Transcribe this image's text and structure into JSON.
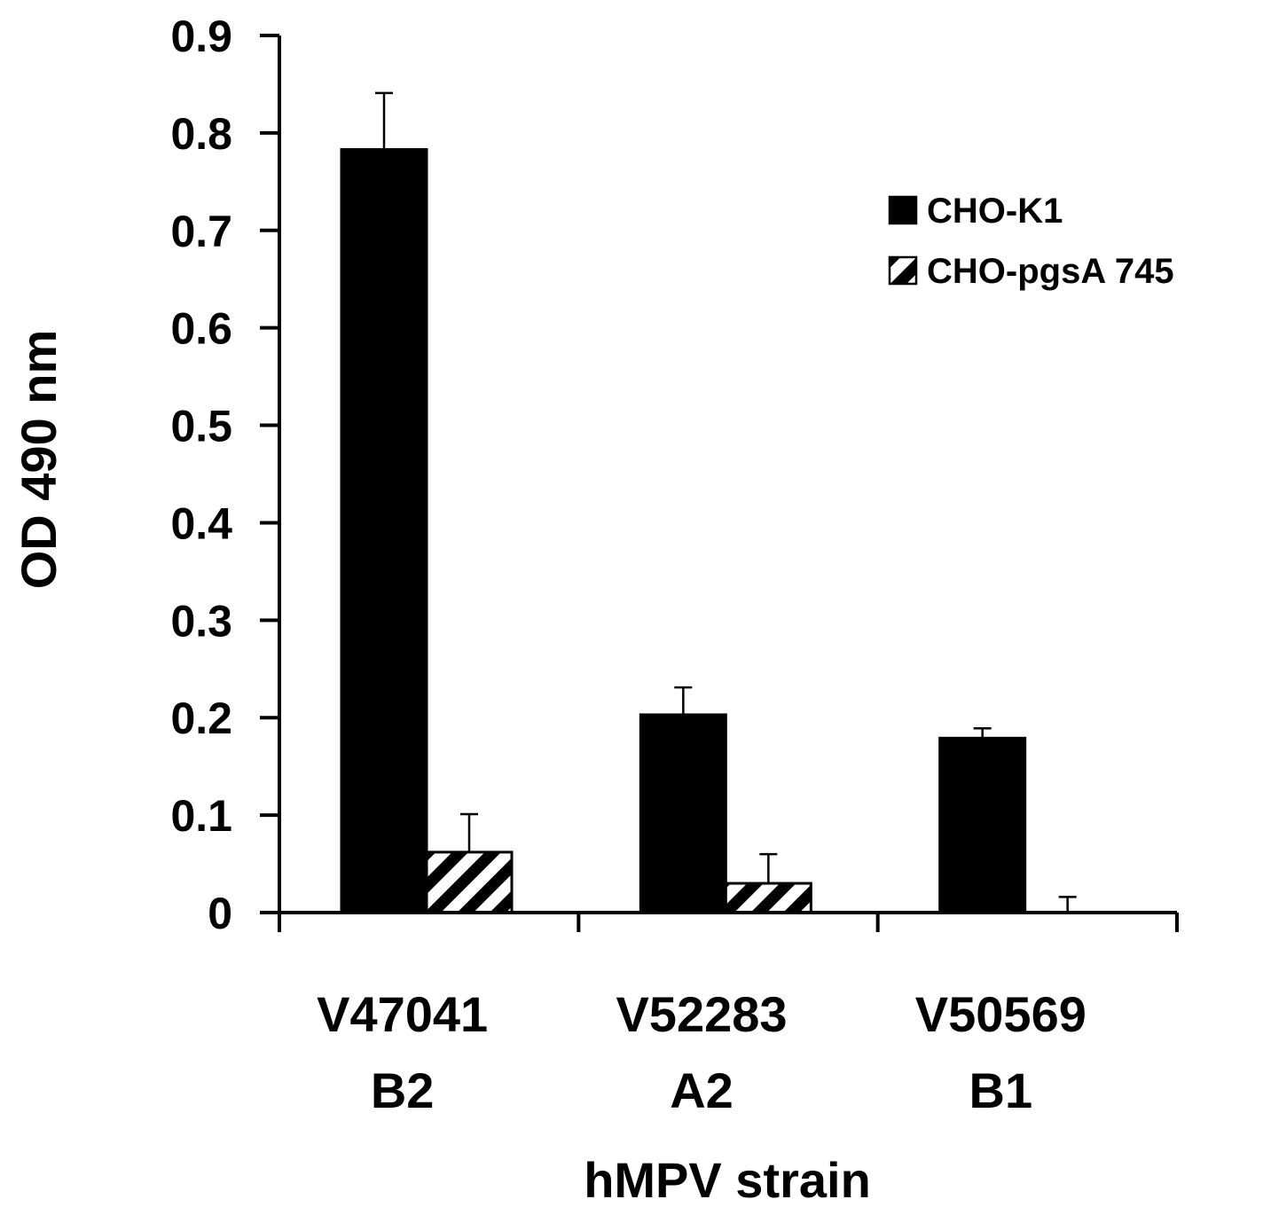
{
  "chart_data": {
    "type": "bar",
    "categories": [
      [
        "V47041",
        "B2"
      ],
      [
        "V52283",
        "A2"
      ],
      [
        "V50569",
        "B1"
      ]
    ],
    "series": [
      {
        "name": "CHO-K1",
        "values": [
          0.783,
          0.203,
          0.179
        ],
        "errors": [
          0.058,
          0.028,
          0.01
        ],
        "fill": "solid",
        "color": "#000000"
      },
      {
        "name": "CHO-pgsA 745",
        "values": [
          0.062,
          0.03,
          0.0
        ],
        "errors": [
          0.039,
          0.03,
          0.016
        ],
        "fill": "diagonal-hatch",
        "color": "#000000"
      }
    ],
    "title": "",
    "xlabel": "hMPV strain",
    "ylabel": "OD 490 nm",
    "ylim": [
      0,
      0.9
    ],
    "yticks": [
      "0",
      "0.1",
      "0.2",
      "0.3",
      "0.4",
      "0.5",
      "0.6",
      "0.7",
      "0.8",
      "0.9"
    ],
    "grid": false,
    "legend_position": "top-right"
  }
}
